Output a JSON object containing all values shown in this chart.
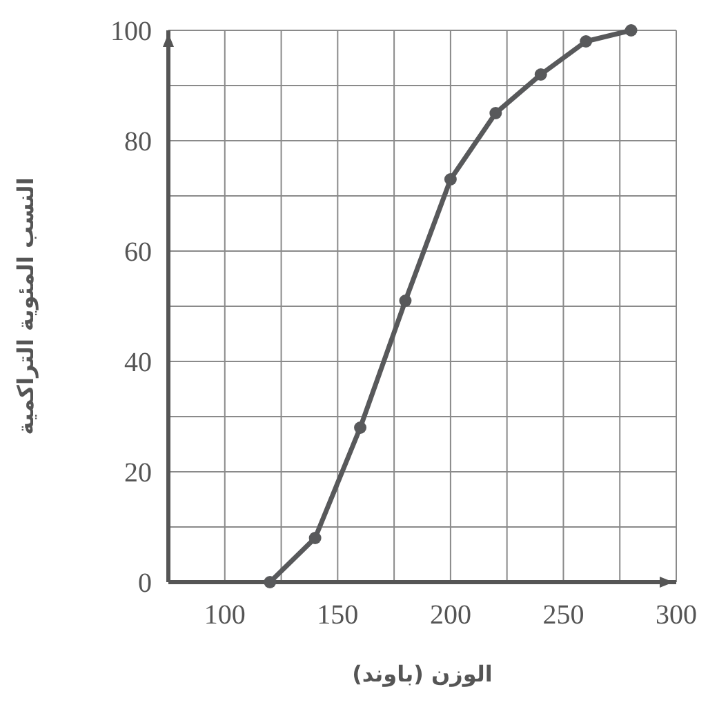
{
  "chart_data": {
    "type": "line",
    "xlabel": "الوزن (باوند)",
    "ylabel": "النسب المئوية التراكمية",
    "x": [
      120,
      140,
      160,
      180,
      200,
      220,
      240,
      260,
      280
    ],
    "values": [
      0,
      8,
      28,
      51,
      73,
      85,
      92,
      98,
      100
    ],
    "color": "#58595b",
    "marker": "circle",
    "line_style": "solid",
    "grid": true,
    "xlim": [
      75,
      300
    ],
    "ylim": [
      0,
      100
    ],
    "xticks": [
      100,
      {
        "value": 125,
        "label": null
      },
      150,
      {
        "value": 175,
        "label": null
      },
      200,
      {
        "value": 225,
        "label": null
      },
      250,
      {
        "value": 275,
        "label": null
      },
      300
    ],
    "yticks": [
      0,
      {
        "value": 10,
        "label": null
      },
      20,
      {
        "value": 30,
        "label": null
      },
      40,
      {
        "value": 50,
        "label": null
      },
      60,
      {
        "value": 70,
        "label": null
      },
      80,
      {
        "value": 90,
        "label": null
      },
      100
    ]
  }
}
